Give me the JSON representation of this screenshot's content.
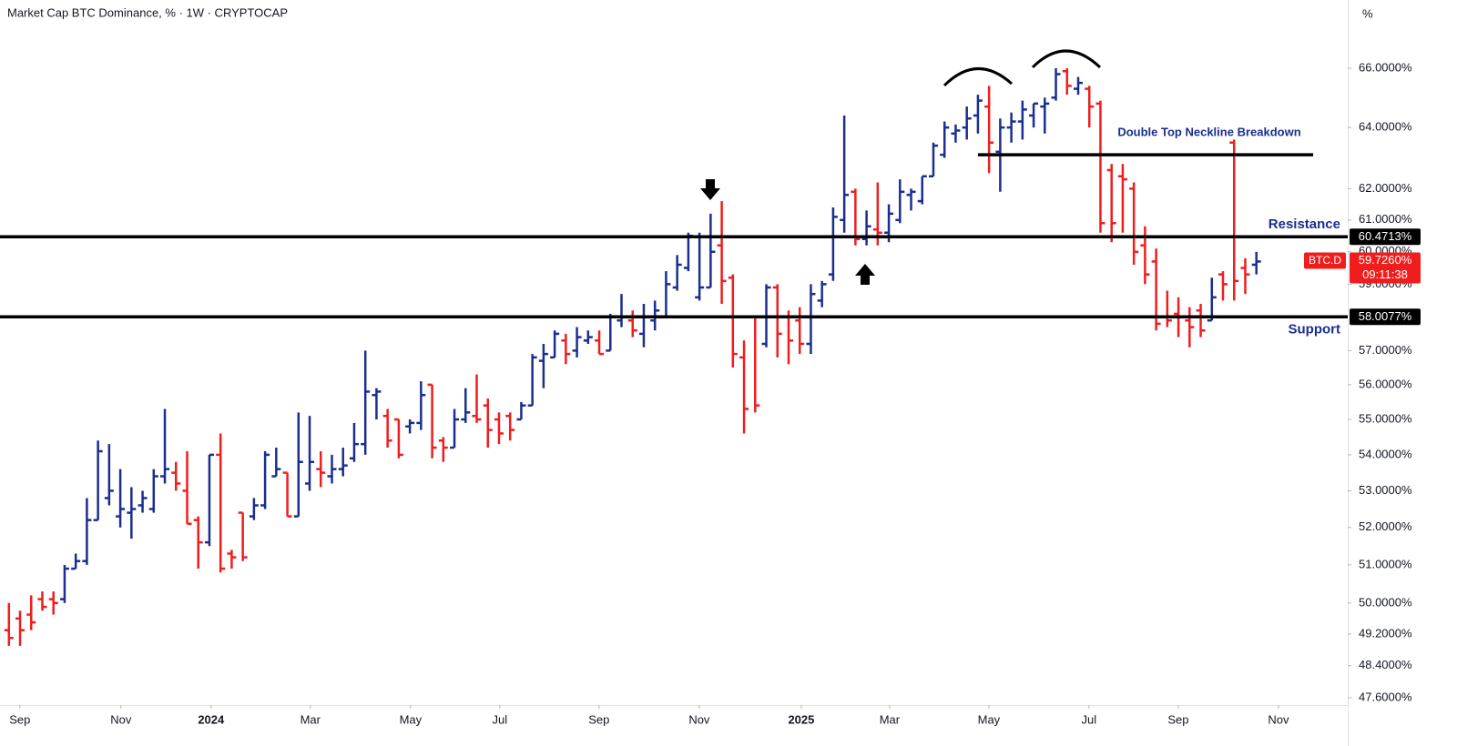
{
  "chart_data": {
    "type": "ohlc",
    "title": "Market Cap BTC Dominance, % · 1W · CRYPTOCAP",
    "axis_unit": "%",
    "log_scale": true,
    "grid": false,
    "up_color": "#1b2e8f",
    "down_color": "#f01d1d",
    "open": [
      49.3,
      49.6,
      49.7,
      50.1,
      50.1,
      50.1,
      50.9,
      51.1,
      52.2,
      52.8,
      52.3,
      52.4,
      52.6,
      52.5,
      53.4,
      53.5,
      53.0,
      52.2,
      51.6,
      54.0,
      51.3,
      52.4,
      52.3,
      52.6,
      53.4,
      53.5,
      52.3,
      53.2,
      53.6,
      53.4,
      53.6,
      53.9,
      54.3,
      55.7,
      55.1,
      55.0,
      54.8,
      54.9,
      56.0,
      54.4,
      54.2,
      55.0,
      55.1,
      55.4,
      55.0,
      55.1,
      55.0,
      55.4,
      56.7,
      56.8,
      57.3,
      57.0,
      57.3,
      57.3,
      57.0,
      57.9,
      57.9,
      57.5,
      57.9,
      58.0,
      58.9,
      59.5,
      58.6,
      58.9,
      60.2,
      59.2,
      56.8,
      58.0,
      57.2,
      58.9,
      58.0,
      57.9,
      57.2,
      58.5,
      59.3,
      61.0,
      61.9,
      60.4,
      60.7,
      60.6,
      61.0,
      61.8,
      61.6,
      62.4,
      63.1,
      63.8,
      64.0,
      64.4,
      64.7,
      63.2,
      64.0,
      64.2,
      64.4,
      64.7,
      65.0,
      65.9,
      65.3,
      65.3,
      64.8,
      62.6,
      62.4,
      62.0,
      60.2,
      59.7,
      58.0,
      58.1,
      57.9,
      58.2,
      57.9,
      59.3,
      63.5,
      59.5,
      59.6
    ],
    "high": [
      50.0,
      49.8,
      50.2,
      50.3,
      50.3,
      51.0,
      51.3,
      52.8,
      54.4,
      54.3,
      53.6,
      53.1,
      53.0,
      53.6,
      55.3,
      53.8,
      54.1,
      52.3,
      54.0,
      54.6,
      51.4,
      52.4,
      52.8,
      54.1,
      54.2,
      53.5,
      55.2,
      55.1,
      54.1,
      54.0,
      54.2,
      54.9,
      57.0,
      55.9,
      55.3,
      55.0,
      55.0,
      56.1,
      56.0,
      54.5,
      55.3,
      55.9,
      56.3,
      55.6,
      55.2,
      55.2,
      55.5,
      56.9,
      57.2,
      57.6,
      57.5,
      57.7,
      57.6,
      57.6,
      58.1,
      58.7,
      58.2,
      58.4,
      58.5,
      59.4,
      59.9,
      60.6,
      60.6,
      61.2,
      61.6,
      59.3,
      57.3,
      58.0,
      59.0,
      59.0,
      58.2,
      58.3,
      59.0,
      59.1,
      61.4,
      64.4,
      62.0,
      61.3,
      62.2,
      61.5,
      62.3,
      62.0,
      62.4,
      63.5,
      64.2,
      64.1,
      64.7,
      65.1,
      65.4,
      64.3,
      64.5,
      64.9,
      64.8,
      65.0,
      66.0,
      66.0,
      65.7,
      65.4,
      64.9,
      62.8,
      62.8,
      62.2,
      60.8,
      60.1,
      58.8,
      58.6,
      58.3,
      58.4,
      59.2,
      59.4,
      63.6,
      59.8,
      60.0
    ],
    "low": [
      48.9,
      48.9,
      49.3,
      49.8,
      49.7,
      50.0,
      50.9,
      51.0,
      52.2,
      52.6,
      52.0,
      51.7,
      52.4,
      52.4,
      53.2,
      53.0,
      52.1,
      50.9,
      51.5,
      50.8,
      50.9,
      51.1,
      52.2,
      52.5,
      53.4,
      52.3,
      52.3,
      53.0,
      53.1,
      53.2,
      53.4,
      53.8,
      54.0,
      55.0,
      54.2,
      53.9,
      54.6,
      54.7,
      53.9,
      53.8,
      54.2,
      54.9,
      54.9,
      54.2,
      54.3,
      54.4,
      55.0,
      55.4,
      55.9,
      56.8,
      56.6,
      56.8,
      57.2,
      56.9,
      57.0,
      57.7,
      57.4,
      57.1,
      57.6,
      58.0,
      58.8,
      59.4,
      58.5,
      58.9,
      58.4,
      56.5,
      54.6,
      55.2,
      57.1,
      56.8,
      56.6,
      56.9,
      56.9,
      58.3,
      59.1,
      60.6,
      60.2,
      60.2,
      60.2,
      60.3,
      60.9,
      61.3,
      61.5,
      62.4,
      63.0,
      63.5,
      63.6,
      63.8,
      62.5,
      61.9,
      63.5,
      63.6,
      64.0,
      63.8,
      64.9,
      65.1,
      65.1,
      64.0,
      60.6,
      60.3,
      60.6,
      59.6,
      59.0,
      57.6,
      57.7,
      57.4,
      57.1,
      57.4,
      57.9,
      58.5,
      58.5,
      58.7,
      59.3
    ],
    "close": [
      49.1,
      49.3,
      49.5,
      49.9,
      50.0,
      50.9,
      51.1,
      52.2,
      54.1,
      53.0,
      52.5,
      52.5,
      52.8,
      53.4,
      53.6,
      53.2,
      52.1,
      51.6,
      54.0,
      50.9,
      51.2,
      51.2,
      52.6,
      54.0,
      53.6,
      52.3,
      53.8,
      53.8,
      53.5,
      53.6,
      53.7,
      54.3,
      55.8,
      55.8,
      54.4,
      54.0,
      54.9,
      55.7,
      54.2,
      54.2,
      55.0,
      55.2,
      55.0,
      54.7,
      54.6,
      54.7,
      55.4,
      56.8,
      56.9,
      57.5,
      56.9,
      57.4,
      57.4,
      56.9,
      58.0,
      58.0,
      57.6,
      58.0,
      58.2,
      59.0,
      59.6,
      60.5,
      58.9,
      60.0,
      59.1,
      56.9,
      55.3,
      55.4,
      58.9,
      57.5,
      57.3,
      57.2,
      58.7,
      59.0,
      61.1,
      61.8,
      60.4,
      60.8,
      60.6,
      61.2,
      61.9,
      61.9,
      62.4,
      63.4,
      64.0,
      63.9,
      64.3,
      64.9,
      63.5,
      64.0,
      64.2,
      64.6,
      64.8,
      64.8,
      65.8,
      65.4,
      65.5,
      64.7,
      60.9,
      60.9,
      62.3,
      60.0,
      59.3,
      57.8,
      57.9,
      58.0,
      57.7,
      57.6,
      58.6,
      59.0,
      59.1,
      59.3,
      59.7
    ],
    "xlim": [
      -0.8,
      120.2
    ],
    "xticks": [
      {
        "value": 0.98,
        "label": "Sep"
      },
      {
        "value": 10.06,
        "label": "Nov"
      },
      {
        "value": 18.15,
        "label": "2024"
      },
      {
        "value": 27.06,
        "label": "Mar"
      },
      {
        "value": 36.06,
        "label": "May"
      },
      {
        "value": 44.07,
        "label": "Jul"
      },
      {
        "value": 52.98,
        "label": "Sep"
      },
      {
        "value": 61.98,
        "label": "Nov"
      },
      {
        "value": 71.14,
        "label": "2025"
      },
      {
        "value": 79.07,
        "label": "Mar"
      },
      {
        "value": 87.98,
        "label": "May"
      },
      {
        "value": 96.97,
        "label": "Jul"
      },
      {
        "value": 104.99,
        "label": "Sep"
      },
      {
        "value": 113.98,
        "label": "Nov"
      }
    ],
    "ylim": [
      47.42,
      68.38
    ],
    "yticks": [
      {
        "value": 47.6,
        "label": "47.6000%"
      },
      {
        "value": 48.4,
        "label": "48.4000%"
      },
      {
        "value": 49.2,
        "label": "49.2000%"
      },
      {
        "value": 50,
        "label": "50.0000%"
      },
      {
        "value": 51,
        "label": "51.0000%"
      },
      {
        "value": 52,
        "label": "52.0000%"
      },
      {
        "value": 53,
        "label": "53.0000%"
      },
      {
        "value": 54,
        "label": "54.0000%"
      },
      {
        "value": 55,
        "label": "55.0000%"
      },
      {
        "value": 56,
        "label": "56.0000%"
      },
      {
        "value": 57,
        "label": "57.0000%"
      },
      {
        "value": 59,
        "label": "59.0000%"
      },
      {
        "value": 60,
        "label": "60.0000%"
      },
      {
        "value": 61,
        "label": "61.0000%"
      },
      {
        "value": 62,
        "label": "62.0000%"
      },
      {
        "value": 64,
        "label": "64.0000%"
      },
      {
        "value": 66,
        "label": "66.0000%"
      }
    ],
    "levels": [
      {
        "name": "Resistance",
        "value": 60.4713,
        "label": "60.4713%"
      },
      {
        "name": "Support",
        "value": 58.0077,
        "label": "58.0077%"
      }
    ],
    "neckline": {
      "label": "Double Top Neckline Breakdown",
      "value": 63.1,
      "x": [
        87,
        117.1
      ]
    },
    "last_price": {
      "symbol": "BTC.D",
      "value": 59.726,
      "label": "59.7260%",
      "countdown": "09:11:38"
    }
  }
}
